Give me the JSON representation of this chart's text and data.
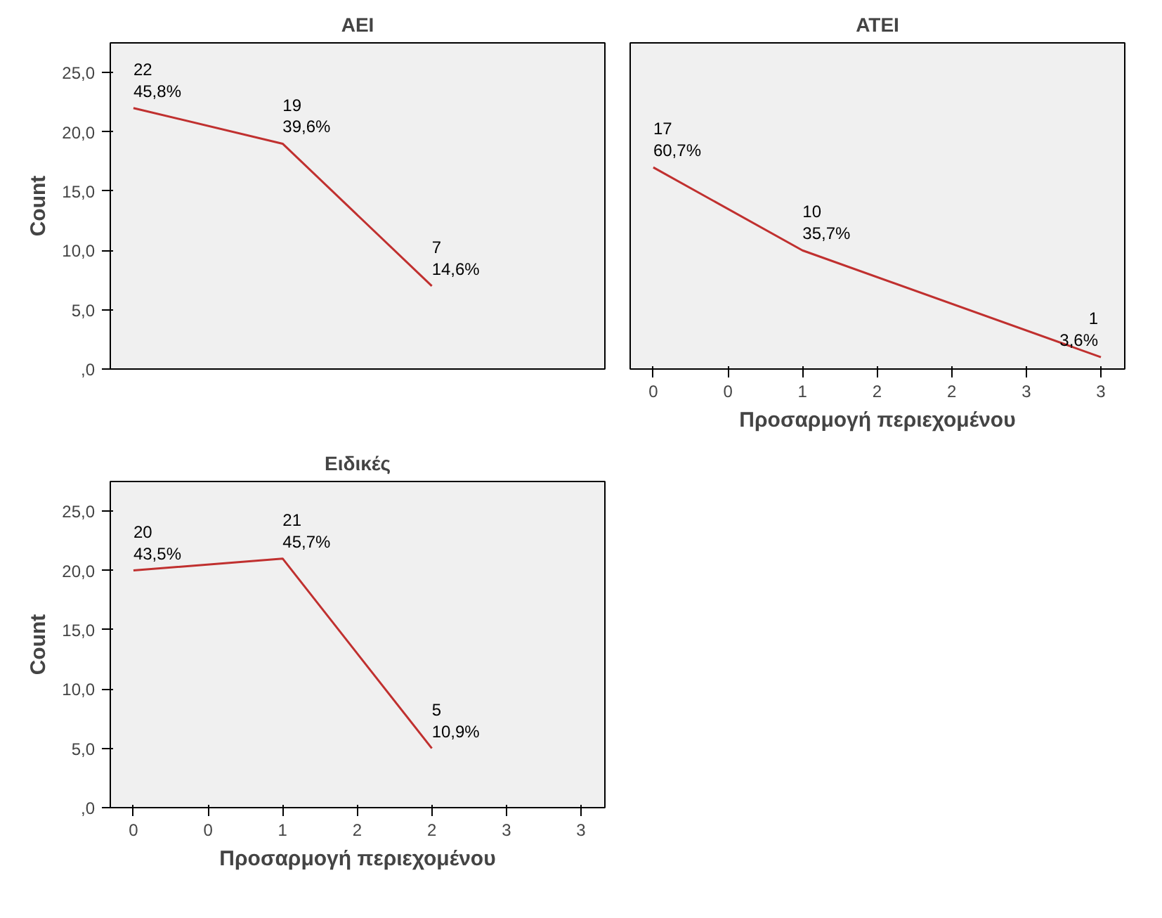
{
  "chart_data": [
    {
      "type": "line",
      "title": "AEI",
      "ylabel": "Count",
      "x": [
        0,
        1,
        2
      ],
      "series": [
        {
          "color": "#c0302f",
          "values": [
            22,
            19,
            7
          ],
          "value_labels": [
            "22\n45,8%",
            "19\n39,6%",
            "7\n14,6%"
          ]
        }
      ],
      "xlim": [
        -0.155,
        3.16
      ],
      "ylim": [
        0,
        27.5
      ],
      "yticks": [
        {
          "value": 0,
          "label": ",0"
        },
        {
          "value": 5,
          "label": "5,0"
        },
        {
          "value": 10,
          "label": "10,0"
        },
        {
          "value": 15,
          "label": "15,0"
        },
        {
          "value": 20,
          "label": "20,0"
        },
        {
          "value": 25,
          "label": "25,0"
        }
      ],
      "tick_labels": "y",
      "grid": false,
      "marker": "none",
      "line_style": "solid"
    },
    {
      "type": "line",
      "title": "ATEI",
      "xlabel": "Προσαρμογή περιεχομένου",
      "x": [
        0,
        1,
        3
      ],
      "series": [
        {
          "color": "#c0302f",
          "values": [
            17,
            10,
            1
          ],
          "value_labels": [
            "17\n60,7%",
            "10\n35,7%",
            "1\n3,6%"
          ]
        }
      ],
      "xlim": [
        -0.155,
        3.16
      ],
      "xticks": [
        {
          "value": 0,
          "label": "0"
        },
        {
          "value": 0.5,
          "label": "0"
        },
        {
          "value": 1,
          "label": "1"
        },
        {
          "value": 1.5,
          "label": "2"
        },
        {
          "value": 2,
          "label": "2"
        },
        {
          "value": 2.5,
          "label": "3"
        },
        {
          "value": 3,
          "label": "3"
        }
      ],
      "ylim": [
        0,
        27.5
      ],
      "tick_labels": "x",
      "grid": false,
      "marker": "none",
      "line_style": "solid"
    },
    {
      "type": "line",
      "title": "Ειδικές",
      "xlabel": "Προσαρμογή περιεχομένου",
      "ylabel": "Count",
      "x": [
        0,
        1,
        2
      ],
      "series": [
        {
          "color": "#c0302f",
          "values": [
            20,
            21,
            5
          ],
          "value_labels": [
            "20\n43,5%",
            "21\n45,7%",
            "5\n10,9%"
          ]
        }
      ],
      "xlim": [
        -0.155,
        3.16
      ],
      "xticks": [
        {
          "value": 0,
          "label": "0"
        },
        {
          "value": 0.5,
          "label": "0"
        },
        {
          "value": 1,
          "label": "1"
        },
        {
          "value": 1.5,
          "label": "2"
        },
        {
          "value": 2,
          "label": "2"
        },
        {
          "value": 2.5,
          "label": "3"
        },
        {
          "value": 3,
          "label": "3"
        }
      ],
      "ylim": [
        0,
        27.5
      ],
      "yticks": [
        {
          "value": 0,
          "label": ",0"
        },
        {
          "value": 5,
          "label": "5,0"
        },
        {
          "value": 10,
          "label": "10,0"
        },
        {
          "value": 15,
          "label": "15,0"
        },
        {
          "value": 20,
          "label": "20,0"
        },
        {
          "value": 25,
          "label": "25,0"
        }
      ],
      "grid": false,
      "marker": "none",
      "line_style": "solid"
    }
  ]
}
